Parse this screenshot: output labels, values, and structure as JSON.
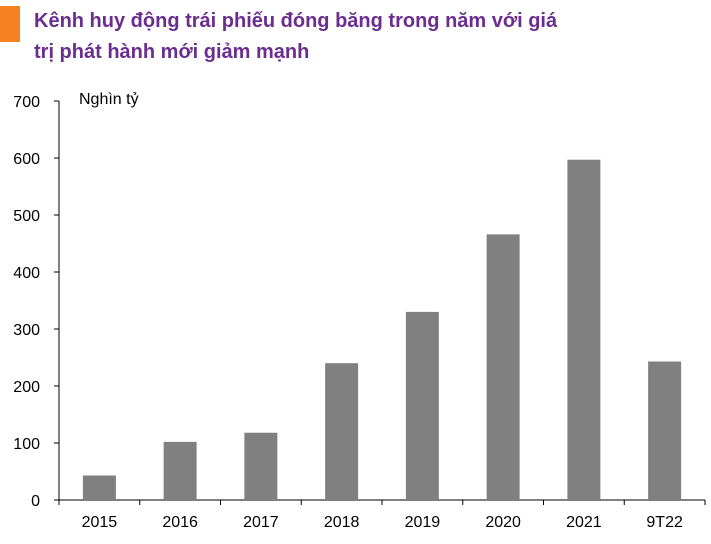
{
  "chart_data": {
    "type": "bar",
    "title": [
      "Kênh huy động trái phiếu đóng băng trong năm với giá",
      "trị phát hành mới giảm mạnh"
    ],
    "unit_label": "Nghìn tỷ",
    "categories": [
      "2015",
      "2016",
      "2017",
      "2018",
      "2019",
      "2020",
      "2021",
      "9T22"
    ],
    "values": [
      43,
      102,
      118,
      240,
      330,
      466,
      597,
      243
    ],
    "ylim": [
      0,
      700
    ],
    "yticks": [
      "0",
      "100",
      "200",
      "300",
      "400",
      "500",
      "600",
      "700"
    ],
    "xlabel": "",
    "ylabel": "",
    "grid": false,
    "bar_color": "#808080",
    "title_color": "#6b2d8f",
    "accent_color": "#f58220"
  }
}
